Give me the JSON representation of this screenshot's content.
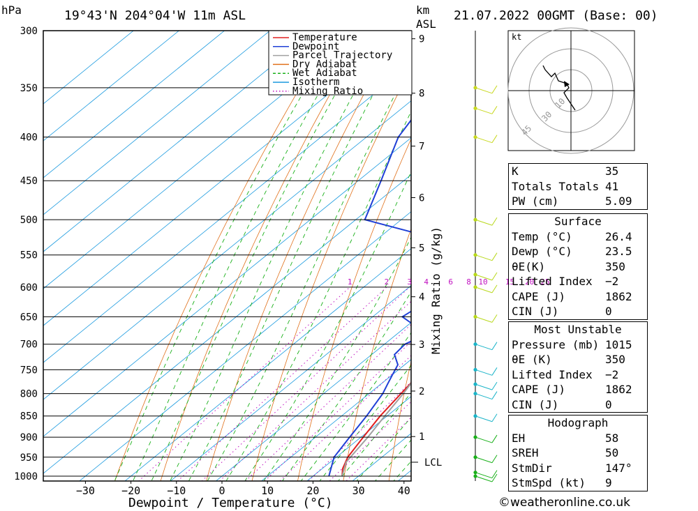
{
  "header": {
    "units_left": "hPa",
    "location": "19°43'N  204°04'W  11m  ASL",
    "units_km": "km",
    "units_asl": "ASL",
    "datetime": "21.07.2022  00GMT  (Base: 00)"
  },
  "credit": "©weatheronline.co.uk",
  "chart_data": {
    "type": "line",
    "title": "Skew-T log-P sounding",
    "xlabel": "Dewpoint / Temperature (°C)",
    "ylabel": "hPa",
    "right_label": "Mixing Ratio (g/kg)",
    "xlim": [
      -40,
      40
    ],
    "ylim": [
      1000,
      300
    ],
    "x_ticks": [
      -30,
      -20,
      -10,
      0,
      10,
      20,
      30,
      40
    ],
    "x_tick_labels": [
      "−30",
      "−20",
      "−10",
      "0",
      "10",
      "20",
      "30",
      "40"
    ],
    "pressure_levels": [
      300,
      350,
      400,
      450,
      500,
      550,
      600,
      650,
      700,
      750,
      800,
      850,
      900,
      950,
      1000
    ],
    "height_ticks_km": [
      1,
      2,
      3,
      4,
      5,
      6,
      7,
      8,
      9
    ],
    "lcl_pressure": 963,
    "lcl_label": "LCL",
    "mixing_ratio_values": [
      1,
      2,
      3,
      4,
      6,
      8,
      10,
      15,
      20,
      25
    ],
    "legend": [
      {
        "name": "Temperature",
        "color": "#e02020",
        "style": "solid"
      },
      {
        "name": "Dewpoint",
        "color": "#1f3fd6",
        "style": "solid"
      },
      {
        "name": "Parcel Trajectory",
        "color": "#a0a0a0",
        "style": "solid"
      },
      {
        "name": "Dry Adiabat",
        "color": "#e0701a",
        "style": "solid"
      },
      {
        "name": "Wet Adiabat",
        "color": "#19b019",
        "style": "dashed"
      },
      {
        "name": "Isotherm",
        "color": "#1a9adf",
        "style": "solid"
      },
      {
        "name": "Mixing Ratio",
        "color": "#c010c0",
        "style": "dotted"
      }
    ],
    "series": [
      {
        "name": "Temperature",
        "points": [
          [
            1000,
            26.4
          ],
          [
            980,
            24.5
          ],
          [
            950,
            22.5
          ],
          [
            900,
            20.5
          ],
          [
            850,
            18.5
          ],
          [
            800,
            17.0
          ],
          [
            750,
            15.5
          ],
          [
            700,
            13.5
          ],
          [
            650,
            11.0
          ],
          [
            620,
            8.5
          ],
          [
            600,
            7.8
          ],
          [
            580,
            7.5
          ],
          [
            560,
            6.8
          ],
          [
            550,
            6.0
          ],
          [
            500,
            -1.0
          ],
          [
            450,
            -6.5
          ],
          [
            400,
            -13.0
          ],
          [
            370,
            -19.0
          ],
          [
            350,
            -24.0
          ],
          [
            300,
            -33.5
          ]
        ]
      },
      {
        "name": "Dewpoint",
        "points": [
          [
            1000,
            23.5
          ],
          [
            950,
            19.5
          ],
          [
            900,
            17.5
          ],
          [
            850,
            15.5
          ],
          [
            800,
            13.0
          ],
          [
            780,
            11.5
          ],
          [
            760,
            10.0
          ],
          [
            740,
            8.5
          ],
          [
            720,
            5.0
          ],
          [
            700,
            4.5
          ],
          [
            690,
            5.5
          ],
          [
            670,
            3.0
          ],
          [
            650,
            -3.5
          ],
          [
            630,
            -2.5
          ],
          [
            610,
            -4.0
          ],
          [
            600,
            -6.0
          ],
          [
            580,
            -8.0
          ],
          [
            560,
            -10.0
          ],
          [
            540,
            -8.0
          ],
          [
            530,
            -6.0
          ],
          [
            520,
            -22.0
          ],
          [
            500,
            -38.0
          ],
          [
            450,
            -45.0
          ],
          [
            400,
            -53.0
          ],
          [
            380,
            -55.0
          ],
          [
            360,
            -58.0
          ],
          [
            350,
            -62.0
          ],
          [
            335,
            -63.0
          ],
          [
            320,
            -68.0
          ],
          [
            300,
            -72.0
          ]
        ]
      },
      {
        "name": "Parcel Trajectory",
        "points": [
          [
            1000,
            26.4
          ],
          [
            963,
            23.5
          ],
          [
            900,
            21.5
          ],
          [
            850,
            19.5
          ],
          [
            800,
            17.5
          ],
          [
            750,
            15.0
          ],
          [
            700,
            12.5
          ],
          [
            650,
            9.5
          ],
          [
            600,
            6.5
          ],
          [
            550,
            3.0
          ],
          [
            500,
            -1.0
          ],
          [
            450,
            -5.5
          ],
          [
            400,
            -10.5
          ],
          [
            350,
            -17.0
          ]
        ]
      }
    ],
    "wind_barbs_pressure": [
      1000,
      990,
      950,
      900,
      850,
      800,
      780,
      750,
      700,
      650,
      600,
      580,
      550,
      500,
      400,
      370,
      350
    ]
  },
  "hodograph": {
    "unit_label": "kt",
    "ring_labels": [
      "10",
      "30",
      "45"
    ]
  },
  "indices": {
    "general": [
      {
        "label": "K",
        "value": "35"
      },
      {
        "label": "Totals Totals",
        "value": "41"
      },
      {
        "label": "PW (cm)",
        "value": "5.09"
      }
    ],
    "surface_title": "Surface",
    "surface": [
      {
        "label": "Temp (°C)",
        "value": "26.4"
      },
      {
        "label": "Dewp (°C)",
        "value": "23.5"
      },
      {
        "label": "θE(K)",
        "value": "350"
      },
      {
        "label": "Lifted Index",
        "value": "−2"
      },
      {
        "label": "CAPE (J)",
        "value": "1862"
      },
      {
        "label": "CIN (J)",
        "value": "0"
      }
    ],
    "most_unstable_title": "Most Unstable",
    "most_unstable": [
      {
        "label": "Pressure (mb)",
        "value": "1015"
      },
      {
        "label": "θE (K)",
        "value": "350"
      },
      {
        "label": "Lifted Index",
        "value": "−2"
      },
      {
        "label": "CAPE (J)",
        "value": "1862"
      },
      {
        "label": "CIN (J)",
        "value": "0"
      }
    ],
    "hodograph_title": "Hodograph",
    "hodograph": [
      {
        "label": "EH",
        "value": "58"
      },
      {
        "label": "SREH",
        "value": "50"
      },
      {
        "label": "StmDir",
        "value": "147°"
      },
      {
        "label": "StmSpd (kt)",
        "value": "9"
      }
    ]
  }
}
